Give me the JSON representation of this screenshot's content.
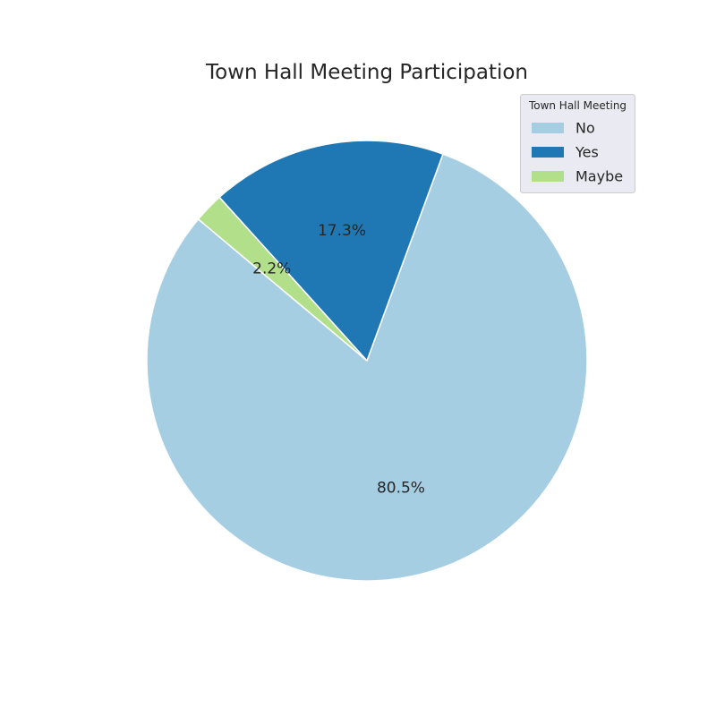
{
  "chart_data": {
    "type": "pie",
    "title": "Town Hall Meeting Participation",
    "categories": [
      "No",
      "Yes",
      "Maybe"
    ],
    "values": [
      80.5,
      17.3,
      2.2
    ],
    "value_labels": [
      "80.5%",
      "17.3%",
      "2.2%"
    ],
    "colors": [
      "#a6cee3",
      "#1f78b4",
      "#b2df8a"
    ],
    "start_angle_deg": 140,
    "direction": "counterclockwise",
    "legend": {
      "title": "Town Hall Meeting",
      "placement": "top-right",
      "entries": [
        "No",
        "Yes",
        "Maybe"
      ]
    }
  }
}
